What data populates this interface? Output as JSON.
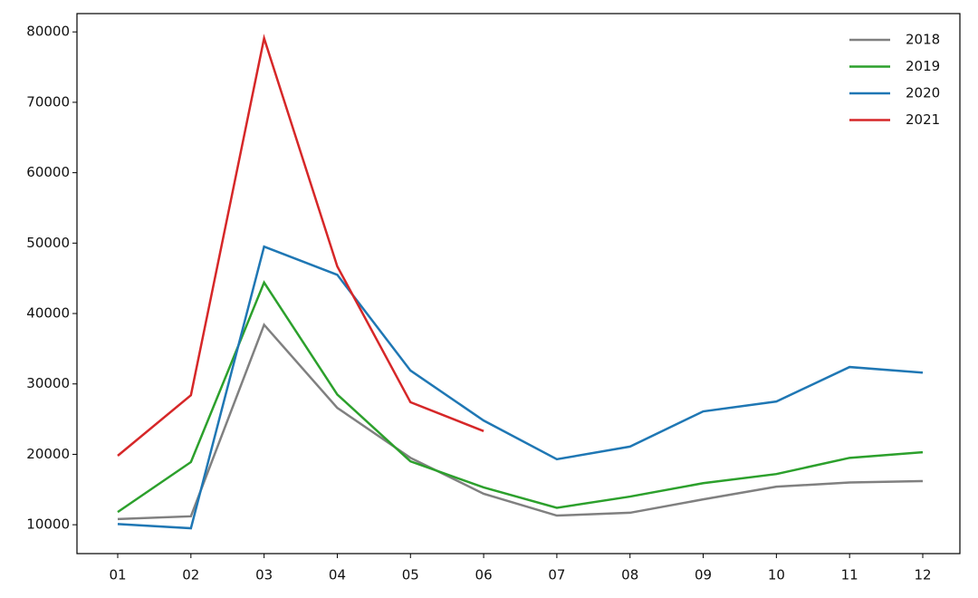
{
  "chart_data": {
    "type": "line",
    "categories": [
      "01",
      "02",
      "03",
      "04",
      "05",
      "06",
      "07",
      "08",
      "09",
      "10",
      "11",
      "12"
    ],
    "series": [
      {
        "name": "2018",
        "color": "#808080",
        "values": [
          10800,
          11200,
          38400,
          26600,
          19500,
          14400,
          11300,
          11700,
          13600,
          15400,
          16000,
          16200
        ]
      },
      {
        "name": "2019",
        "color": "#2ca02c",
        "values": [
          11800,
          18900,
          44400,
          28500,
          19000,
          15300,
          12400,
          14000,
          15900,
          17200,
          19500,
          20300
        ]
      },
      {
        "name": "2020",
        "color": "#1f77b4",
        "values": [
          10100,
          9500,
          49500,
          45500,
          31900,
          24800,
          19300,
          21100,
          26100,
          27500,
          32400,
          31600
        ]
      },
      {
        "name": "2021",
        "color": "#d62728",
        "values": [
          19800,
          28400,
          79100,
          46700,
          27400,
          23300,
          null,
          null,
          null,
          null,
          null,
          null
        ]
      }
    ],
    "ylim": [
      5900,
      82600
    ],
    "yticks": [
      10000,
      20000,
      30000,
      40000,
      50000,
      60000,
      70000,
      80000
    ],
    "legend": "upper right",
    "grid": false
  }
}
